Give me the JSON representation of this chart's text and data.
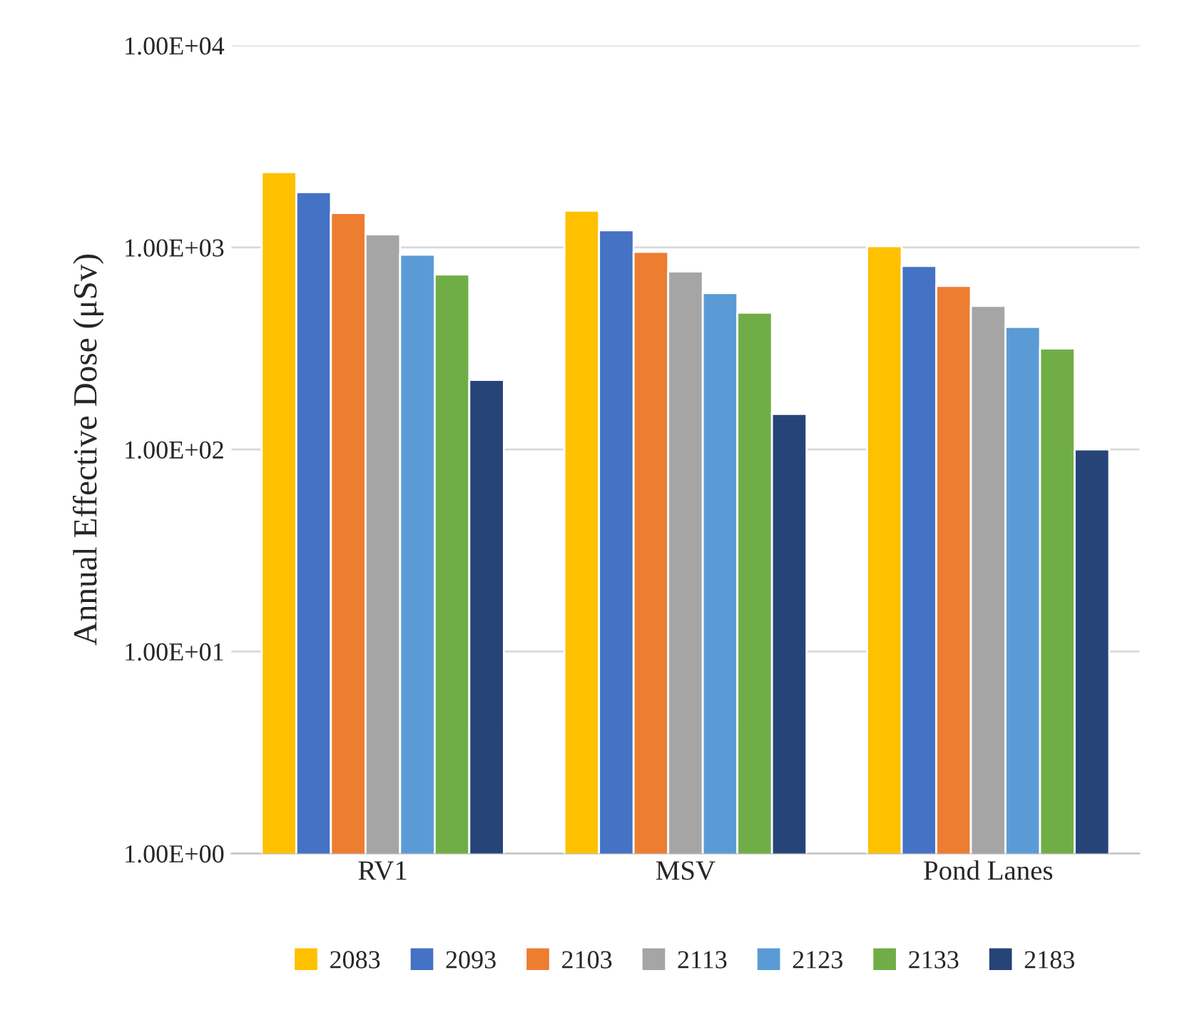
{
  "chart_data": {
    "type": "bar",
    "ylabel": "Annual Effective Dose (μSv)",
    "log": true,
    "categories": [
      "RV1",
      "MSV",
      "Pond Lanes"
    ],
    "series": [
      {
        "name": "2083",
        "color": "#ffc000",
        "values": [
          2360,
          1520,
          1015
        ]
      },
      {
        "name": "2093",
        "color": "#4472c4",
        "values": [
          1880,
          1215,
          810
        ]
      },
      {
        "name": "2103",
        "color": "#ed7d31",
        "values": [
          1480,
          950,
          645
        ]
      },
      {
        "name": "2113",
        "color": "#a5a5a5",
        "values": [
          1160,
          760,
          514
        ]
      },
      {
        "name": "2123",
        "color": "#5b9bd5",
        "values": [
          920,
          595,
          404
        ]
      },
      {
        "name": "2133",
        "color": "#70ad47",
        "values": [
          735,
          475,
          316
        ]
      },
      {
        "name": "2183",
        "color": "#264478",
        "values": [
          221,
          150,
          100
        ]
      }
    ],
    "ylim": [
      1,
      10000
    ],
    "yticks": [
      {
        "value": 1,
        "label": "1.00E+00"
      },
      {
        "value": 10,
        "label": "1.00E+01"
      },
      {
        "value": 100,
        "label": "1.00E+02"
      },
      {
        "value": 1000,
        "label": "1.00E+03"
      },
      {
        "value": 10000,
        "label": "1.00E+04"
      }
    ],
    "grid": "y",
    "legend": "bottom"
  }
}
